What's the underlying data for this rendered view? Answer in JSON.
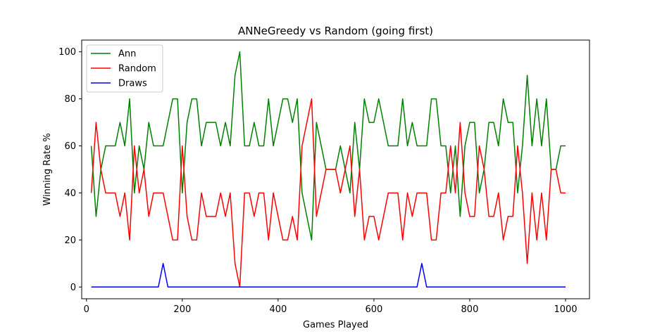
{
  "chart_data": {
    "type": "line",
    "title": "ANNeGreedy vs Random (going first)",
    "xlabel": "Games Played",
    "ylabel": "Winning Rate %",
    "xlim": [
      -10,
      1050
    ],
    "ylim": [
      -5,
      105
    ],
    "xticks": [
      0,
      200,
      400,
      600,
      800,
      1000
    ],
    "yticks": [
      0,
      20,
      40,
      60,
      80,
      100
    ],
    "grid": false,
    "legend_position": "upper-left",
    "x": [
      10,
      20,
      30,
      40,
      50,
      60,
      70,
      80,
      90,
      100,
      110,
      120,
      130,
      140,
      150,
      160,
      170,
      180,
      190,
      200,
      210,
      220,
      230,
      240,
      250,
      260,
      270,
      280,
      290,
      300,
      310,
      320,
      330,
      340,
      350,
      360,
      370,
      380,
      390,
      400,
      410,
      420,
      430,
      440,
      450,
      460,
      470,
      480,
      490,
      500,
      510,
      520,
      530,
      540,
      550,
      560,
      570,
      580,
      590,
      600,
      610,
      620,
      630,
      640,
      650,
      660,
      670,
      680,
      690,
      700,
      710,
      720,
      730,
      740,
      750,
      760,
      770,
      780,
      790,
      800,
      810,
      820,
      830,
      840,
      850,
      860,
      870,
      880,
      890,
      900,
      910,
      920,
      930,
      940,
      950,
      960,
      970,
      980,
      990,
      1000
    ],
    "series": [
      {
        "name": "Ann",
        "color": "#008000",
        "values": [
          60,
          30,
          50,
          60,
          60,
          60,
          70,
          60,
          80,
          40,
          60,
          50,
          70,
          60,
          60,
          60,
          70,
          80,
          80,
          40,
          70,
          80,
          80,
          60,
          70,
          70,
          70,
          60,
          70,
          60,
          90,
          100,
          60,
          60,
          70,
          60,
          60,
          80,
          60,
          70,
          80,
          80,
          70,
          80,
          40,
          30,
          20,
          70,
          60,
          50,
          50,
          50,
          60,
          50,
          40,
          70,
          50,
          80,
          70,
          70,
          80,
          70,
          60,
          60,
          60,
          80,
          60,
          70,
          60,
          60,
          60,
          80,
          80,
          60,
          60,
          40,
          60,
          30,
          60,
          70,
          70,
          40,
          50,
          70,
          70,
          60,
          80,
          70,
          70,
          40,
          60,
          90,
          60,
          80,
          60,
          80,
          50,
          50,
          60,
          60
        ]
      },
      {
        "name": "Random",
        "color": "#ff0000",
        "values": [
          40,
          70,
          50,
          40,
          40,
          40,
          30,
          40,
          20,
          60,
          40,
          50,
          30,
          40,
          40,
          40,
          30,
          20,
          20,
          60,
          30,
          20,
          20,
          40,
          30,
          30,
          30,
          40,
          30,
          40,
          10,
          0,
          40,
          40,
          30,
          40,
          40,
          20,
          40,
          30,
          20,
          20,
          30,
          20,
          60,
          70,
          80,
          30,
          40,
          50,
          50,
          50,
          40,
          50,
          60,
          30,
          50,
          20,
          30,
          30,
          20,
          30,
          40,
          40,
          40,
          20,
          40,
          30,
          40,
          40,
          40,
          20,
          20,
          40,
          40,
          60,
          40,
          70,
          40,
          30,
          30,
          60,
          50,
          30,
          30,
          40,
          20,
          30,
          30,
          60,
          40,
          10,
          40,
          20,
          40,
          20,
          50,
          50,
          40,
          40
        ]
      },
      {
        "name": "Draws",
        "color": "#0000ff",
        "values": [
          0,
          0,
          0,
          0,
          0,
          0,
          0,
          0,
          0,
          0,
          0,
          0,
          0,
          0,
          0,
          10,
          0,
          0,
          0,
          0,
          0,
          0,
          0,
          0,
          0,
          0,
          0,
          0,
          0,
          0,
          0,
          0,
          0,
          0,
          0,
          0,
          0,
          0,
          0,
          0,
          0,
          0,
          0,
          0,
          0,
          0,
          0,
          0,
          0,
          0,
          0,
          0,
          0,
          0,
          0,
          0,
          0,
          0,
          0,
          0,
          0,
          0,
          0,
          0,
          0,
          0,
          0,
          0,
          0,
          10,
          0,
          0,
          0,
          0,
          0,
          0,
          0,
          0,
          0,
          0,
          0,
          0,
          0,
          0,
          0,
          0,
          0,
          0,
          0,
          0,
          0,
          0,
          0,
          0,
          0,
          0,
          0,
          0,
          0,
          0
        ]
      }
    ]
  }
}
